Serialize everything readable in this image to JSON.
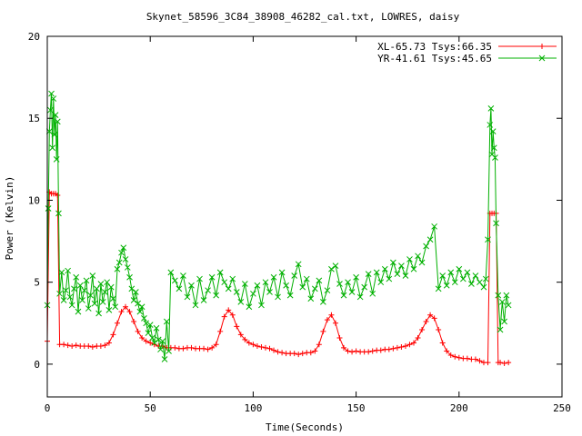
{
  "chart_data": {
    "type": "line",
    "title": "Skynet_58596_3C84_38908_46282_cal.txt, LOWRES, daisy",
    "xlabel": "Time(Seconds)",
    "ylabel": "Power (Kelvin)",
    "xlim": [
      0,
      250
    ],
    "ylim": [
      -2,
      20
    ],
    "xticks": [
      0,
      50,
      100,
      150,
      200,
      250
    ],
    "yticks": [
      0,
      5,
      10,
      15,
      20
    ],
    "grid": false,
    "legend_position": "top-right",
    "series": [
      {
        "name": "XL-65.73 Tsys:66.35",
        "color": "#ff0000",
        "marker": "plus",
        "points": [
          [
            0,
            1.4
          ],
          [
            1,
            10.5
          ],
          [
            2,
            10.4
          ],
          [
            3,
            10.4
          ],
          [
            4,
            10.4
          ],
          [
            5,
            10.3
          ],
          [
            6,
            1.2
          ],
          [
            8,
            1.2
          ],
          [
            10,
            1.15
          ],
          [
            12,
            1.1
          ],
          [
            14,
            1.15
          ],
          [
            16,
            1.1
          ],
          [
            18,
            1.1
          ],
          [
            20,
            1.1
          ],
          [
            22,
            1.05
          ],
          [
            24,
            1.1
          ],
          [
            26,
            1.1
          ],
          [
            28,
            1.15
          ],
          [
            30,
            1.3
          ],
          [
            32,
            1.8
          ],
          [
            34,
            2.5
          ],
          [
            36,
            3.2
          ],
          [
            38,
            3.5
          ],
          [
            40,
            3.2
          ],
          [
            42,
            2.6
          ],
          [
            44,
            2.0
          ],
          [
            46,
            1.6
          ],
          [
            48,
            1.4
          ],
          [
            50,
            1.3
          ],
          [
            52,
            1.2
          ],
          [
            54,
            1.1
          ],
          [
            56,
            1.1
          ],
          [
            58,
            1.0
          ],
          [
            60,
            1.0
          ],
          [
            62,
            1.0
          ],
          [
            64,
            0.95
          ],
          [
            66,
            0.95
          ],
          [
            68,
            1.0
          ],
          [
            70,
            1.0
          ],
          [
            72,
            0.95
          ],
          [
            74,
            0.95
          ],
          [
            76,
            0.95
          ],
          [
            78,
            0.9
          ],
          [
            80,
            1.0
          ],
          [
            82,
            1.2
          ],
          [
            84,
            2.0
          ],
          [
            86,
            2.9
          ],
          [
            88,
            3.3
          ],
          [
            90,
            3.0
          ],
          [
            92,
            2.3
          ],
          [
            94,
            1.8
          ],
          [
            96,
            1.5
          ],
          [
            98,
            1.3
          ],
          [
            100,
            1.2
          ],
          [
            102,
            1.1
          ],
          [
            104,
            1.05
          ],
          [
            106,
            1.0
          ],
          [
            108,
            0.95
          ],
          [
            110,
            0.85
          ],
          [
            112,
            0.75
          ],
          [
            114,
            0.7
          ],
          [
            116,
            0.65
          ],
          [
            118,
            0.65
          ],
          [
            120,
            0.65
          ],
          [
            122,
            0.6
          ],
          [
            124,
            0.65
          ],
          [
            126,
            0.7
          ],
          [
            128,
            0.7
          ],
          [
            130,
            0.8
          ],
          [
            132,
            1.2
          ],
          [
            134,
            2.0
          ],
          [
            136,
            2.7
          ],
          [
            138,
            3.0
          ],
          [
            140,
            2.5
          ],
          [
            142,
            1.6
          ],
          [
            144,
            1.0
          ],
          [
            146,
            0.8
          ],
          [
            148,
            0.75
          ],
          [
            150,
            0.8
          ],
          [
            152,
            0.75
          ],
          [
            154,
            0.75
          ],
          [
            156,
            0.75
          ],
          [
            158,
            0.8
          ],
          [
            160,
            0.85
          ],
          [
            162,
            0.85
          ],
          [
            164,
            0.9
          ],
          [
            166,
            0.9
          ],
          [
            168,
            0.95
          ],
          [
            170,
            1.0
          ],
          [
            172,
            1.05
          ],
          [
            174,
            1.1
          ],
          [
            176,
            1.2
          ],
          [
            178,
            1.3
          ],
          [
            180,
            1.6
          ],
          [
            182,
            2.1
          ],
          [
            184,
            2.6
          ],
          [
            186,
            3.0
          ],
          [
            188,
            2.8
          ],
          [
            190,
            2.1
          ],
          [
            192,
            1.3
          ],
          [
            194,
            0.8
          ],
          [
            196,
            0.55
          ],
          [
            198,
            0.45
          ],
          [
            200,
            0.4
          ],
          [
            202,
            0.35
          ],
          [
            204,
            0.35
          ],
          [
            206,
            0.3
          ],
          [
            208,
            0.3
          ],
          [
            210,
            0.2
          ],
          [
            212,
            0.1
          ],
          [
            214,
            0.1
          ],
          [
            215,
            9.2
          ],
          [
            216,
            9.2
          ],
          [
            217,
            9.2
          ],
          [
            218,
            9.2
          ],
          [
            219,
            0.1
          ],
          [
            220,
            0.1
          ],
          [
            222,
            0.05
          ],
          [
            224,
            0.1
          ]
        ]
      },
      {
        "name": "YR-41.61 Tsys:45.65",
        "color": "#00b000",
        "marker": "x",
        "points": [
          [
            0,
            3.6
          ],
          [
            0.5,
            9.5
          ],
          [
            1,
            14.2
          ],
          [
            1.5,
            15.5
          ],
          [
            2,
            16.5
          ],
          [
            2.5,
            13.2
          ],
          [
            3,
            16.2
          ],
          [
            3.5,
            14.0
          ],
          [
            4,
            15.2
          ],
          [
            4.5,
            12.5
          ],
          [
            5,
            14.8
          ],
          [
            5.5,
            9.2
          ],
          [
            6,
            4.3
          ],
          [
            7,
            5.6
          ],
          [
            8,
            3.9
          ],
          [
            9,
            4.5
          ],
          [
            10,
            5.7
          ],
          [
            11,
            4.1
          ],
          [
            12,
            3.6
          ],
          [
            13,
            4.6
          ],
          [
            14,
            5.3
          ],
          [
            15,
            3.2
          ],
          [
            16,
            4.8
          ],
          [
            17,
            3.9
          ],
          [
            18,
            4.5
          ],
          [
            19,
            5.1
          ],
          [
            20,
            3.4
          ],
          [
            21,
            4.2
          ],
          [
            22,
            5.4
          ],
          [
            23,
            3.7
          ],
          [
            24,
            4.6
          ],
          [
            25,
            3.1
          ],
          [
            26,
            4.9
          ],
          [
            27,
            3.8
          ],
          [
            28,
            4.4
          ],
          [
            29,
            5.0
          ],
          [
            30,
            3.3
          ],
          [
            31,
            4.7
          ],
          [
            32,
            4.0
          ],
          [
            33,
            3.5
          ],
          [
            34,
            5.8
          ],
          [
            35,
            6.2
          ],
          [
            36,
            6.8
          ],
          [
            37,
            7.1
          ],
          [
            38,
            6.4
          ],
          [
            39,
            5.9
          ],
          [
            40,
            5.3
          ],
          [
            41,
            4.6
          ],
          [
            42,
            3.9
          ],
          [
            43,
            4.4
          ],
          [
            44,
            3.7
          ],
          [
            45,
            3.2
          ],
          [
            46,
            3.5
          ],
          [
            47,
            2.8
          ],
          [
            48,
            2.5
          ],
          [
            49,
            1.9
          ],
          [
            50,
            2.4
          ],
          [
            51,
            1.6
          ],
          [
            52,
            1.3
          ],
          [
            53,
            2.2
          ],
          [
            54,
            1.5
          ],
          [
            55,
            0.9
          ],
          [
            56,
            1.4
          ],
          [
            57,
            0.3
          ],
          [
            58,
            2.6
          ],
          [
            59,
            0.8
          ],
          [
            60,
            5.6
          ],
          [
            62,
            5.1
          ],
          [
            64,
            4.6
          ],
          [
            66,
            5.4
          ],
          [
            68,
            4.1
          ],
          [
            70,
            4.8
          ],
          [
            72,
            3.6
          ],
          [
            74,
            5.2
          ],
          [
            76,
            3.9
          ],
          [
            78,
            4.5
          ],
          [
            80,
            5.3
          ],
          [
            82,
            4.2
          ],
          [
            84,
            5.6
          ],
          [
            86,
            5.0
          ],
          [
            88,
            4.6
          ],
          [
            90,
            5.2
          ],
          [
            92,
            4.4
          ],
          [
            94,
            3.8
          ],
          [
            96,
            4.9
          ],
          [
            98,
            3.5
          ],
          [
            100,
            4.3
          ],
          [
            102,
            4.8
          ],
          [
            104,
            3.6
          ],
          [
            106,
            5.0
          ],
          [
            108,
            4.4
          ],
          [
            110,
            5.3
          ],
          [
            112,
            4.1
          ],
          [
            114,
            5.6
          ],
          [
            116,
            4.8
          ],
          [
            118,
            4.2
          ],
          [
            120,
            5.4
          ],
          [
            122,
            6.1
          ],
          [
            124,
            4.7
          ],
          [
            126,
            5.2
          ],
          [
            128,
            4.0
          ],
          [
            130,
            4.6
          ],
          [
            132,
            5.1
          ],
          [
            134,
            3.8
          ],
          [
            136,
            4.5
          ],
          [
            138,
            5.8
          ],
          [
            140,
            6.0
          ],
          [
            142,
            4.9
          ],
          [
            144,
            4.2
          ],
          [
            146,
            5.0
          ],
          [
            148,
            4.4
          ],
          [
            150,
            5.3
          ],
          [
            152,
            4.1
          ],
          [
            154,
            4.7
          ],
          [
            156,
            5.5
          ],
          [
            158,
            4.3
          ],
          [
            160,
            5.6
          ],
          [
            162,
            5.0
          ],
          [
            164,
            5.8
          ],
          [
            166,
            5.2
          ],
          [
            168,
            6.2
          ],
          [
            170,
            5.5
          ],
          [
            172,
            6.0
          ],
          [
            174,
            5.4
          ],
          [
            176,
            6.4
          ],
          [
            178,
            5.8
          ],
          [
            180,
            6.6
          ],
          [
            182,
            6.2
          ],
          [
            184,
            7.2
          ],
          [
            186,
            7.6
          ],
          [
            188,
            8.4
          ],
          [
            190,
            4.6
          ],
          [
            192,
            5.4
          ],
          [
            194,
            4.8
          ],
          [
            196,
            5.6
          ],
          [
            198,
            5.0
          ],
          [
            200,
            5.8
          ],
          [
            202,
            5.2
          ],
          [
            204,
            5.6
          ],
          [
            206,
            4.9
          ],
          [
            208,
            5.4
          ],
          [
            210,
            5.0
          ],
          [
            212,
            4.7
          ],
          [
            213,
            5.2
          ],
          [
            214,
            7.6
          ],
          [
            215,
            14.6
          ],
          [
            215.5,
            15.6
          ],
          [
            216,
            12.8
          ],
          [
            216.5,
            14.2
          ],
          [
            217,
            13.2
          ],
          [
            217.5,
            12.6
          ],
          [
            218,
            8.6
          ],
          [
            219,
            4.2
          ],
          [
            220,
            2.1
          ],
          [
            221,
            3.8
          ],
          [
            222,
            2.6
          ],
          [
            223,
            4.2
          ],
          [
            224,
            3.6
          ]
        ]
      }
    ]
  }
}
